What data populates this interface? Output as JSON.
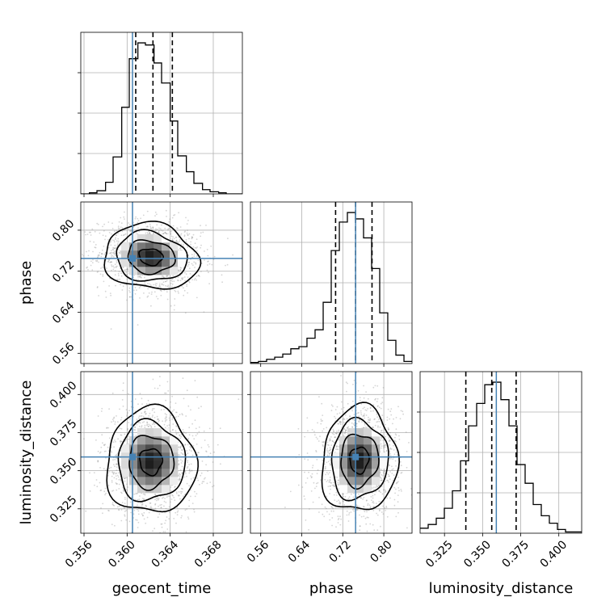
{
  "chart_data": {
    "type": "corner",
    "parameters": [
      "geocent_time",
      "phase",
      "luminosity_distance"
    ],
    "grid": true,
    "truth_color": "#4682b4",
    "hist_color": "#000000",
    "truths": {
      "geocent_time": 0.3605,
      "phase": 0.745,
      "luminosity_distance": 0.359
    },
    "quantiles": {
      "geocent_time": [
        0.3608,
        0.3624,
        0.3642
      ],
      "phase": [
        0.706,
        0.745,
        0.777
      ],
      "luminosity_distance": [
        0.339,
        0.356,
        0.372
      ]
    },
    "axis_ranges": {
      "geocent_time": [
        0.3557,
        0.3707
      ],
      "phase": [
        0.54,
        0.855
      ],
      "luminosity_distance": [
        0.309,
        0.415
      ]
    },
    "ticks": {
      "geocent_time": [
        {
          "value": 0.356,
          "label": "0.356"
        },
        {
          "value": 0.36,
          "label": "0.360"
        },
        {
          "value": 0.364,
          "label": "0.364"
        },
        {
          "value": 0.368,
          "label": "0.368"
        }
      ],
      "phase": [
        {
          "value": 0.56,
          "label": "0.56"
        },
        {
          "value": 0.64,
          "label": "0.64"
        },
        {
          "value": 0.72,
          "label": "0.72"
        },
        {
          "value": 0.8,
          "label": "0.80"
        }
      ],
      "luminosity_distance": [
        {
          "value": 0.325,
          "label": "0.325"
        },
        {
          "value": 0.35,
          "label": "0.350"
        },
        {
          "value": 0.375,
          "label": "0.375"
        },
        {
          "value": 0.4,
          "label": "0.400"
        }
      ]
    },
    "histograms": {
      "geocent_time": {
        "edges": [
          0.3557,
          0.3565,
          0.3572,
          0.358,
          0.3587,
          0.3595,
          0.3602,
          0.361,
          0.3617,
          0.3625,
          0.3632,
          0.364,
          0.3647,
          0.3655,
          0.3662,
          0.367,
          0.3677,
          0.3685,
          0.3692,
          0.37,
          0.3707
        ],
        "counts": [
          0,
          1,
          3,
          11,
          35,
          82,
          128,
          143,
          141,
          124,
          105,
          69,
          36,
          21,
          10,
          4,
          2,
          1,
          0,
          0
        ]
      },
      "phase": {
        "edges": [
          0.54,
          0.5557,
          0.5715,
          0.5873,
          0.603,
          0.6187,
          0.6345,
          0.6502,
          0.666,
          0.6818,
          0.6975,
          0.7133,
          0.729,
          0.7447,
          0.7605,
          0.7762,
          0.792,
          0.8077,
          0.8235,
          0.8393,
          0.855
        ],
        "counts": [
          1,
          2,
          4,
          6,
          9,
          14,
          16,
          24,
          32,
          58,
          107,
          134,
          143,
          137,
          119,
          90,
          48,
          22,
          8,
          2
        ]
      },
      "luminosity_distance": {
        "edges": [
          0.309,
          0.3143,
          0.3196,
          0.3249,
          0.3302,
          0.3355,
          0.3408,
          0.3461,
          0.3514,
          0.3567,
          0.362,
          0.3673,
          0.3726,
          0.3779,
          0.3832,
          0.3885,
          0.3938,
          0.3991,
          0.4044,
          0.4097,
          0.415
        ],
        "counts": [
          4,
          7,
          12,
          20,
          34,
          58,
          86,
          104,
          119,
          121,
          107,
          86,
          55,
          40,
          23,
          14,
          8,
          3,
          1,
          1
        ]
      }
    },
    "joint": {
      "phase_vs_geocent_time": {
        "x": "geocent_time",
        "y": "phase",
        "mean": [
          0.3622,
          0.748
        ],
        "std": [
          0.0019,
          0.028
        ],
        "corr": -0.1
      },
      "luminosity_distance_vs_geocent_time": {
        "x": "geocent_time",
        "y": "luminosity_distance",
        "mean": [
          0.3622,
          0.356
        ],
        "std": [
          0.0018,
          0.015
        ],
        "corr": 0.0
      },
      "luminosity_distance_vs_phase": {
        "x": "phase",
        "y": "luminosity_distance",
        "mean": [
          0.752,
          0.357
        ],
        "std": [
          0.032,
          0.015
        ],
        "corr": 0.05
      }
    }
  }
}
